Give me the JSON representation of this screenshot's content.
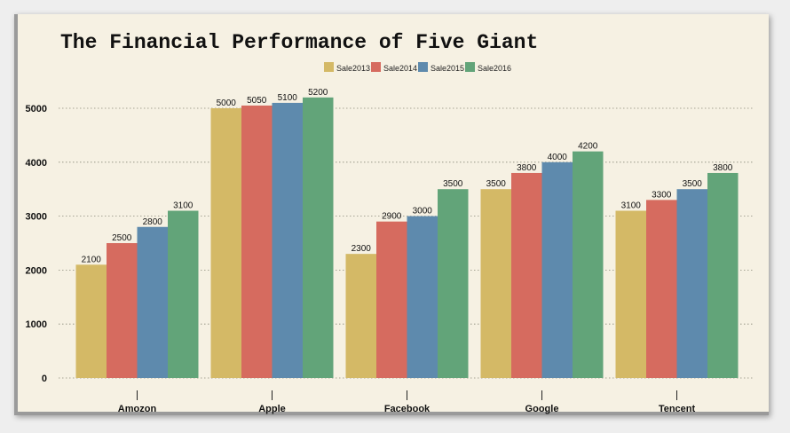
{
  "chart_data": {
    "type": "bar",
    "title": "The Financial Performance of Five Giant",
    "xlabel": "",
    "ylabel": "",
    "categories": [
      "Amozon",
      "Apple",
      "Facebook",
      "Google",
      "Tencent"
    ],
    "series": [
      {
        "name": "Sale2013",
        "color": "#d4b966",
        "values": [
          2100,
          5000,
          2300,
          3500,
          3100
        ]
      },
      {
        "name": "Sale2014",
        "color": "#d66b5f",
        "values": [
          2500,
          5050,
          2900,
          3800,
          3300
        ]
      },
      {
        "name": "Sale2015",
        "color": "#5e8aad",
        "values": [
          2800,
          5100,
          3000,
          4000,
          3500
        ]
      },
      {
        "name": "Sale2016",
        "color": "#62a479",
        "values": [
          3100,
          5200,
          3500,
          4200,
          3800
        ]
      }
    ],
    "ylim": [
      0,
      5400
    ],
    "yticks": [
      0,
      1000,
      2000,
      3000,
      4000,
      5000
    ],
    "grid": true,
    "legend_position": "top-center",
    "colors": {
      "background": "#f6f1e3",
      "grid": "#8a8a7a"
    }
  }
}
